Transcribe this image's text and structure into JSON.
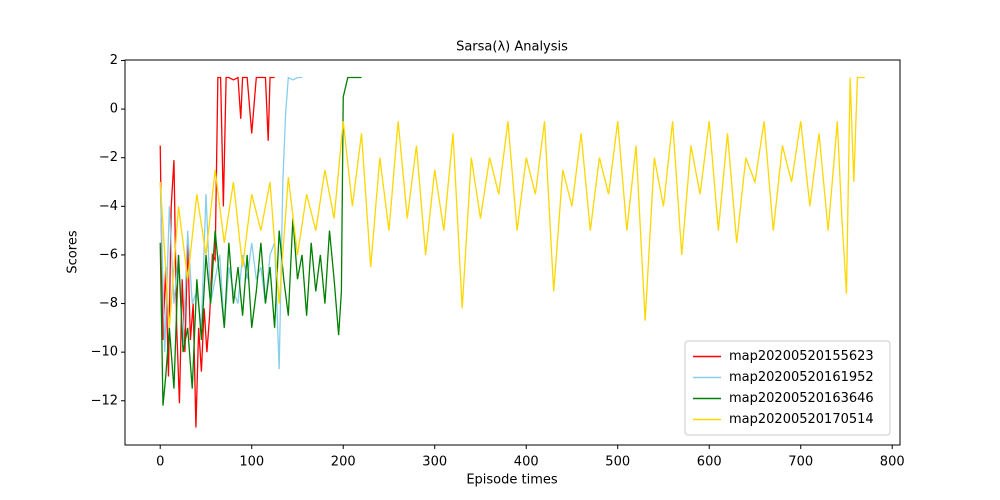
{
  "chart_data": {
    "type": "line",
    "title": "Sarsa(λ) Analysis",
    "x_label": "Episode times",
    "y_label": "Scores",
    "xlim": [
      -38.5,
      808.5
    ],
    "ylim": [
      -13.82,
      2.02
    ],
    "xticks": [
      0,
      100,
      200,
      300,
      400,
      500,
      600,
      700,
      800
    ],
    "yticks": [
      {
        "value": -12,
        "label": "−12"
      },
      {
        "value": -10,
        "label": "−10"
      },
      {
        "value": -8,
        "label": "−8"
      },
      {
        "value": -6,
        "label": "−6"
      },
      {
        "value": -4,
        "label": "−4"
      },
      {
        "value": -2,
        "label": "−2"
      },
      0,
      2
    ],
    "legend": "lower right",
    "grid": false,
    "series": [
      {
        "name": "map20200520155623",
        "color": "#ff0000",
        "x": [
          0,
          3,
          6,
          9,
          12,
          15,
          18,
          21,
          24,
          27,
          30,
          33,
          36,
          39,
          42,
          45,
          48,
          51,
          54,
          57,
          60,
          63,
          66,
          69,
          72,
          75,
          80,
          85,
          88,
          90,
          95,
          100,
          105,
          110,
          115,
          118,
          120,
          125
        ],
        "values": [
          -1.5,
          -9.5,
          -6.5,
          -11,
          -4,
          -2.1,
          -9,
          -12.1,
          -7,
          -10,
          -5.5,
          -9.5,
          -8,
          -13.1,
          -9,
          -10.8,
          -8.2,
          -10,
          -8.5,
          -6,
          -6.2,
          1.3,
          1.3,
          -4,
          1.3,
          1.3,
          1.2,
          1.3,
          -0.4,
          1.3,
          1.3,
          -1,
          1.3,
          1.3,
          1.3,
          -1.3,
          1.3,
          1.3
        ]
      },
      {
        "name": "map20200520161952",
        "color": "#87ceeb",
        "x": [
          0,
          5,
          10,
          15,
          20,
          25,
          30,
          35,
          40,
          45,
          50,
          55,
          60,
          65,
          70,
          75,
          80,
          85,
          90,
          95,
          100,
          105,
          110,
          115,
          120,
          125,
          130,
          134,
          137,
          140,
          145,
          150,
          155
        ],
        "values": [
          -3,
          -10,
          -4,
          -8,
          -6,
          -9.8,
          -5,
          -8,
          -7.5,
          -9,
          -3.5,
          -8,
          -7,
          -6,
          -9,
          -6.5,
          -7.5,
          -8,
          -6,
          -7,
          -5.5,
          -7,
          -6.5,
          -8,
          -6,
          -5.5,
          -10.7,
          -3,
          -0.2,
          1.3,
          1.2,
          1.3,
          1.3
        ]
      },
      {
        "name": "map20200520163646",
        "color": "#008000",
        "x": [
          0,
          3,
          6,
          10,
          15,
          20,
          25,
          30,
          35,
          40,
          45,
          50,
          55,
          60,
          65,
          70,
          75,
          80,
          85,
          90,
          95,
          100,
          105,
          110,
          115,
          120,
          125,
          130,
          135,
          140,
          145,
          150,
          155,
          160,
          165,
          170,
          175,
          180,
          185,
          190,
          195,
          198,
          200,
          205,
          210,
          215,
          220
        ],
        "values": [
          -5.5,
          -12.2,
          -11,
          -9,
          -11.5,
          -6,
          -10,
          -9,
          -11.5,
          -7,
          -9.5,
          -6,
          -8,
          -5,
          -7,
          -9,
          -5.5,
          -8,
          -6.5,
          -8.5,
          -6,
          -9,
          -7.5,
          -5.5,
          -8,
          -6.5,
          -9,
          -5,
          -7,
          -8.5,
          -4.5,
          -7,
          -6,
          -8.5,
          -5.5,
          -7.5,
          -6,
          -8,
          -5,
          -7,
          -9.3,
          -7.5,
          0.5,
          1.3,
          1.3,
          1.3,
          1.3
        ]
      },
      {
        "name": "map20200520170514",
        "color": "#ffd700",
        "x": [
          0,
          10,
          20,
          30,
          40,
          50,
          60,
          70,
          80,
          90,
          100,
          110,
          120,
          130,
          140,
          150,
          160,
          170,
          180,
          190,
          200,
          210,
          220,
          230,
          240,
          250,
          260,
          270,
          280,
          290,
          300,
          310,
          320,
          330,
          340,
          350,
          360,
          370,
          380,
          390,
          400,
          410,
          420,
          430,
          440,
          450,
          460,
          470,
          480,
          490,
          500,
          510,
          520,
          530,
          540,
          550,
          560,
          570,
          580,
          590,
          600,
          610,
          620,
          630,
          640,
          650,
          660,
          670,
          680,
          690,
          700,
          710,
          720,
          730,
          740,
          745,
          750,
          754,
          758,
          762,
          770
        ],
        "values": [
          -3,
          -9,
          -4,
          -7,
          -3.5,
          -6,
          -2.5,
          -5.5,
          -3,
          -6.5,
          -3.5,
          -5,
          -3,
          -8,
          -2.8,
          -6,
          -3.5,
          -5,
          -2.5,
          -4.5,
          -0.5,
          -4,
          -1,
          -6.5,
          -2,
          -5,
          -0.5,
          -4.5,
          -1.5,
          -6,
          -2.5,
          -5,
          -1,
          -8.2,
          -2,
          -4.5,
          -2,
          -3.5,
          -0.5,
          -5,
          -2,
          -3.5,
          -0.5,
          -7.5,
          -2.5,
          -4,
          -1,
          -5,
          -2,
          -3.5,
          -0.5,
          -5,
          -1.5,
          -8.7,
          -2,
          -4,
          -0.5,
          -6,
          -1.5,
          -3.5,
          -0.5,
          -5,
          -1,
          -5.5,
          -2,
          -3,
          -0.5,
          -5,
          -1.5,
          -3,
          -0.5,
          -4,
          -1,
          -5,
          -0.5,
          -4.5,
          -7.6,
          1.3,
          -3,
          1.3,
          1.3
        ]
      }
    ]
  }
}
